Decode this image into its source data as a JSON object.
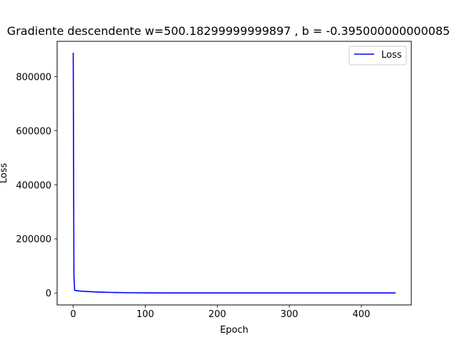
{
  "chart_data": {
    "type": "line",
    "title": "Gradiente descendente w=500.18299999999897 , b = -0.395000000000085",
    "xlabel": "Epoch",
    "ylabel": "Loss",
    "xlim": [
      -22.35,
      469.35
    ],
    "ylim": [
      -44300,
      930000
    ],
    "xticks": [
      0,
      100,
      200,
      300,
      400
    ],
    "yticks": [
      0,
      200000,
      400000,
      600000,
      800000
    ],
    "xtick_labels": [
      "0",
      "100",
      "200",
      "300",
      "400"
    ],
    "ytick_labels": [
      "0",
      "200000",
      "400000",
      "600000",
      "800000"
    ],
    "grid": false,
    "legend": {
      "position": "top-right",
      "entries": [
        "Loss"
      ]
    },
    "series": [
      {
        "name": "Loss",
        "color": "#0000ff",
        "x": [
          0,
          1,
          2,
          5,
          10,
          20,
          30,
          40,
          50,
          60,
          80,
          100,
          150,
          200,
          250,
          300,
          350,
          400,
          447
        ],
        "y": [
          886000,
          60000,
          10000,
          8500,
          7000,
          5200,
          3900,
          2900,
          2100,
          1500,
          800,
          400,
          100,
          40,
          20,
          10,
          5,
          3,
          2
        ]
      }
    ]
  }
}
